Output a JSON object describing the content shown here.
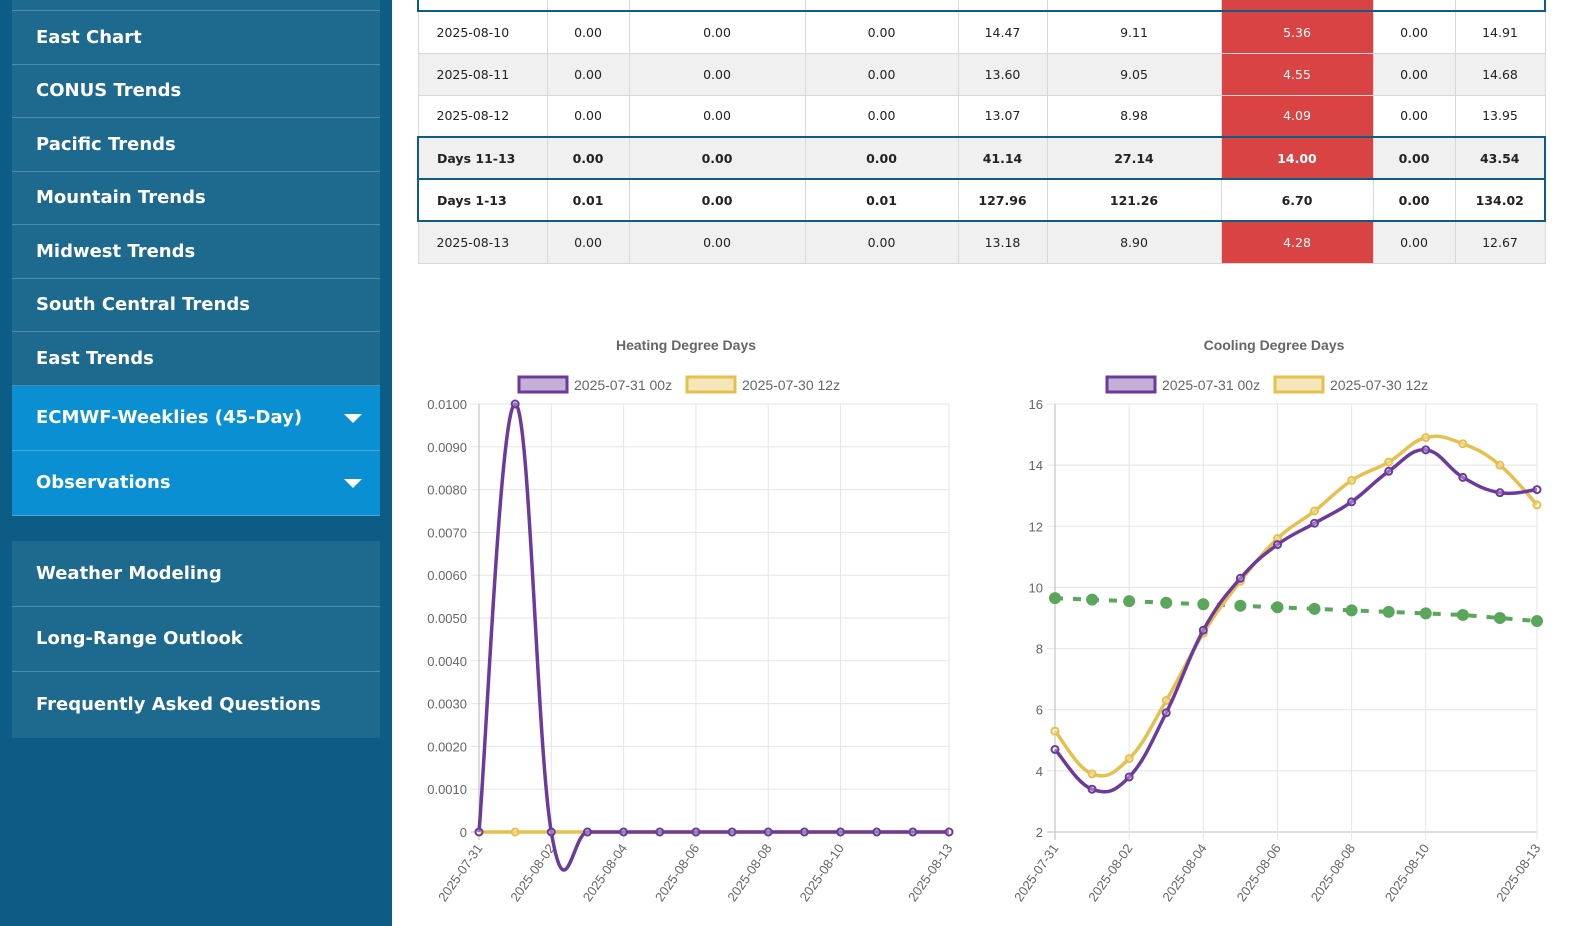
{
  "sidebar": {
    "top_items": [
      {
        "label": "East Chart"
      },
      {
        "label": "CONUS Trends"
      },
      {
        "label": "Pacific Trends"
      },
      {
        "label": "Mountain Trends"
      },
      {
        "label": "Midwest Trends"
      },
      {
        "label": "South Central Trends"
      },
      {
        "label": "East Trends"
      }
    ],
    "expandable": [
      {
        "label": "ECMWF-Weeklies (45-Day)"
      },
      {
        "label": "Observations"
      }
    ],
    "bottom_items": [
      {
        "label": "Weather Modeling"
      },
      {
        "label": "Long-Range Outlook"
      },
      {
        "label": "Frequently Asked Questions"
      }
    ]
  },
  "table": {
    "rows": [
      {
        "label": "",
        "cells": [
          "",
          "",
          "",
          "",
          "",
          "",
          "",
          ""
        ],
        "type": "sum"
      },
      {
        "label": "2025-08-10",
        "cells": [
          "0.00",
          "0.00",
          "0.00",
          "14.47",
          "9.11",
          "5.36",
          "0.00",
          "14.91"
        ],
        "type": "even"
      },
      {
        "label": "2025-08-11",
        "cells": [
          "0.00",
          "0.00",
          "0.00",
          "13.60",
          "9.05",
          "4.55",
          "0.00",
          "14.68"
        ],
        "type": "odd"
      },
      {
        "label": "2025-08-12",
        "cells": [
          "0.00",
          "0.00",
          "0.00",
          "13.07",
          "8.98",
          "4.09",
          "0.00",
          "13.95"
        ],
        "type": "even"
      },
      {
        "label": "Days 11-13",
        "cells": [
          "0.00",
          "0.00",
          "0.00",
          "41.14",
          "27.14",
          "14.00",
          "0.00",
          "43.54"
        ],
        "type": "sum odd"
      },
      {
        "label": "Days 1-13",
        "cells": [
          "0.01",
          "0.00",
          "0.01",
          "127.96",
          "121.26",
          "6.70",
          "0.00",
          "134.02"
        ],
        "type": "sum even",
        "nohot": true
      },
      {
        "label": "2025-08-13",
        "cells": [
          "0.00",
          "0.00",
          "0.00",
          "13.18",
          "8.90",
          "4.28",
          "0.00",
          "12.67"
        ],
        "type": "odd"
      }
    ]
  },
  "colors": {
    "purple": "#6b3a9c",
    "gold": "#e6c04f",
    "green": "#5aa65a",
    "hot": "#d94343"
  },
  "chart_data": [
    {
      "type": "line",
      "title": "Heating Degree Days",
      "x": [
        "2025-07-31",
        "2025-08-01",
        "2025-08-02",
        "2025-08-03",
        "2025-08-04",
        "2025-08-05",
        "2025-08-06",
        "2025-08-07",
        "2025-08-08",
        "2025-08-09",
        "2025-08-10",
        "2025-08-11",
        "2025-08-12",
        "2025-08-13"
      ],
      "x_tick_labels": [
        "2025-07-31",
        "2025-08-02",
        "2025-08-04",
        "2025-08-06",
        "2025-08-08",
        "2025-08-10",
        "2025-08-13"
      ],
      "y_tick_labels": [
        "0",
        "0.0010",
        "0.0020",
        "0.0030",
        "0.0040",
        "0.0050",
        "0.0060",
        "0.0070",
        "0.0080",
        "0.0090",
        "0.0100"
      ],
      "ylim": [
        0,
        0.01
      ],
      "legend": "top",
      "series": [
        {
          "name": "2025-07-31 00z",
          "color": "#6b3a9c",
          "values": [
            0,
            0.01,
            0,
            0,
            0,
            0,
            0,
            0,
            0,
            0,
            0,
            0,
            0,
            0
          ]
        },
        {
          "name": "2025-07-30 12z",
          "color": "#e6c04f",
          "values": [
            0,
            0,
            0,
            0,
            0,
            0,
            0,
            0,
            0,
            0,
            0,
            0,
            0,
            0
          ]
        }
      ]
    },
    {
      "type": "line",
      "title": "Cooling Degree Days",
      "x": [
        "2025-07-31",
        "2025-08-01",
        "2025-08-02",
        "2025-08-03",
        "2025-08-04",
        "2025-08-05",
        "2025-08-06",
        "2025-08-07",
        "2025-08-08",
        "2025-08-09",
        "2025-08-10",
        "2025-08-11",
        "2025-08-12",
        "2025-08-13"
      ],
      "x_tick_labels": [
        "2025-07-31",
        "2025-08-02",
        "2025-08-04",
        "2025-08-06",
        "2025-08-08",
        "2025-08-10",
        "2025-08-13"
      ],
      "y_tick_labels": [
        "2",
        "4",
        "6",
        "8",
        "10",
        "12",
        "14",
        "16"
      ],
      "ylim": [
        2,
        16
      ],
      "legend": "top",
      "series": [
        {
          "name": "2025-07-31 00z",
          "color": "#6b3a9c",
          "values": [
            4.7,
            3.4,
            3.8,
            5.9,
            8.6,
            10.3,
            11.4,
            12.1,
            12.8,
            13.8,
            14.5,
            13.6,
            13.1,
            13.2
          ]
        },
        {
          "name": "2025-07-30 12z",
          "color": "#e6c04f",
          "values": [
            5.3,
            3.9,
            4.4,
            6.3,
            8.5,
            10.2,
            11.6,
            12.5,
            13.5,
            14.1,
            14.9,
            14.7,
            14.0,
            12.7
          ]
        },
        {
          "name": "",
          "color": "#5aa65a",
          "dashed": true,
          "values": [
            9.65,
            9.6,
            9.55,
            9.5,
            9.45,
            9.4,
            9.35,
            9.3,
            9.25,
            9.2,
            9.15,
            9.1,
            9.0,
            8.9
          ]
        }
      ]
    }
  ]
}
